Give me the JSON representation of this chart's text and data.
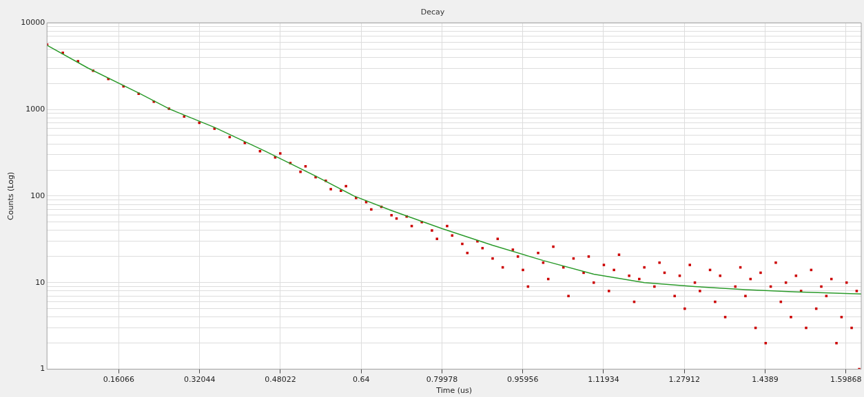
{
  "chart_data": {
    "type": "scatter",
    "title": "Decay",
    "xlabel": "Time (us)",
    "ylabel": "Counts (Log)",
    "log": "y",
    "grid": true,
    "legend": false,
    "xlim": [
      0.0187,
      1.629
    ],
    "xticks": [
      0.16066,
      0.32044,
      0.48022,
      0.64,
      0.79978,
      0.95956,
      1.11934,
      1.27912,
      1.4389,
      1.59868
    ],
    "ylim": [
      1,
      10000
    ],
    "yticks": [
      1,
      {
        "value": 2,
        "label": null
      },
      {
        "value": 3,
        "label": null
      },
      {
        "value": 4,
        "label": null
      },
      {
        "value": 5,
        "label": null
      },
      {
        "value": 6,
        "label": null
      },
      {
        "value": 7,
        "label": null
      },
      {
        "value": 8,
        "label": null
      },
      {
        "value": 9,
        "label": null
      },
      10,
      {
        "value": 20,
        "label": null
      },
      {
        "value": 30,
        "label": null
      },
      {
        "value": 40,
        "label": null
      },
      {
        "value": 50,
        "label": null
      },
      {
        "value": 60,
        "label": null
      },
      {
        "value": 70,
        "label": null
      },
      {
        "value": 80,
        "label": null
      },
      {
        "value": 90,
        "label": null
      },
      100,
      {
        "value": 200,
        "label": null
      },
      {
        "value": 300,
        "label": null
      },
      {
        "value": 400,
        "label": null
      },
      {
        "value": 500,
        "label": null
      },
      {
        "value": 600,
        "label": null
      },
      {
        "value": 700,
        "label": null
      },
      {
        "value": 800,
        "label": null
      },
      {
        "value": 900,
        "label": null
      },
      1000,
      {
        "value": 2000,
        "label": null
      },
      {
        "value": 3000,
        "label": null
      },
      {
        "value": 4000,
        "label": null
      },
      {
        "value": 5000,
        "label": null
      },
      {
        "value": 6000,
        "label": null
      },
      {
        "value": 7000,
        "label": null
      },
      {
        "value": 8000,
        "label": null
      },
      {
        "value": 9000,
        "label": null
      },
      10000
    ],
    "series": [
      {
        "marker": "square",
        "color": "#cc0000",
        "x": [
          0.019,
          0.05,
          0.08,
          0.11,
          0.14,
          0.17,
          0.2,
          0.23,
          0.26,
          0.29,
          0.32,
          0.35,
          0.38,
          0.41,
          0.44,
          0.47,
          0.48,
          0.5,
          0.52,
          0.53,
          0.55,
          0.57,
          0.58,
          0.6,
          0.61,
          0.63,
          0.65,
          0.66,
          0.68,
          0.7,
          0.71,
          0.73,
          0.74,
          0.76,
          0.78,
          0.79,
          0.81,
          0.82,
          0.84,
          0.85,
          0.87,
          0.88,
          0.9,
          0.91,
          0.92,
          0.94,
          0.95,
          0.96,
          0.97,
          0.99,
          1.0,
          1.01,
          1.02,
          1.04,
          1.05,
          1.06,
          1.08,
          1.09,
          1.1,
          1.12,
          1.13,
          1.14,
          1.15,
          1.17,
          1.18,
          1.19,
          1.2,
          1.22,
          1.23,
          1.24,
          1.26,
          1.27,
          1.28,
          1.29,
          1.3,
          1.31,
          1.33,
          1.34,
          1.35,
          1.36,
          1.38,
          1.39,
          1.4,
          1.41,
          1.42,
          1.43,
          1.44,
          1.45,
          1.46,
          1.47,
          1.48,
          1.49,
          1.5,
          1.51,
          1.52,
          1.53,
          1.54,
          1.55,
          1.56,
          1.57,
          1.58,
          1.59,
          1.6,
          1.61,
          1.62,
          1.625
        ],
        "values": [
          5600,
          4500,
          3600,
          2800,
          2250,
          1850,
          1520,
          1230,
          1020,
          830,
          700,
          600,
          480,
          410,
          330,
          280,
          310,
          240,
          190,
          220,
          165,
          150,
          120,
          115,
          130,
          95,
          85,
          70,
          75,
          60,
          55,
          58,
          45,
          50,
          40,
          32,
          45,
          35,
          28,
          22,
          30,
          25,
          19,
          32,
          15,
          24,
          20,
          14,
          9,
          22,
          17,
          11,
          26,
          15,
          7,
          19,
          13,
          20,
          10,
          16,
          8,
          14,
          21,
          12,
          6,
          11,
          15,
          9,
          17,
          13,
          7,
          12,
          5,
          16,
          10,
          8,
          14,
          6,
          12,
          4,
          9,
          15,
          7,
          11,
          3,
          13,
          2,
          9,
          17,
          6,
          10,
          4,
          12,
          8,
          3,
          14,
          5,
          9,
          7,
          11,
          2,
          4,
          10,
          3,
          8,
          1
        ]
      },
      {
        "type": "line",
        "marker": "none",
        "color": "#2a9a2a",
        "x": [
          0.019,
          0.1,
          0.2,
          0.263,
          0.35,
          0.45,
          0.55,
          0.626,
          0.7,
          0.8,
          0.9,
          1.0,
          1.1,
          1.2,
          1.3,
          1.4,
          1.5,
          1.629
        ],
        "values": [
          5500,
          3000,
          1550,
          1000,
          620,
          330,
          170,
          100,
          68,
          42,
          27,
          18,
          12.5,
          10,
          9,
          8.3,
          7.8,
          7.4
        ]
      }
    ]
  }
}
